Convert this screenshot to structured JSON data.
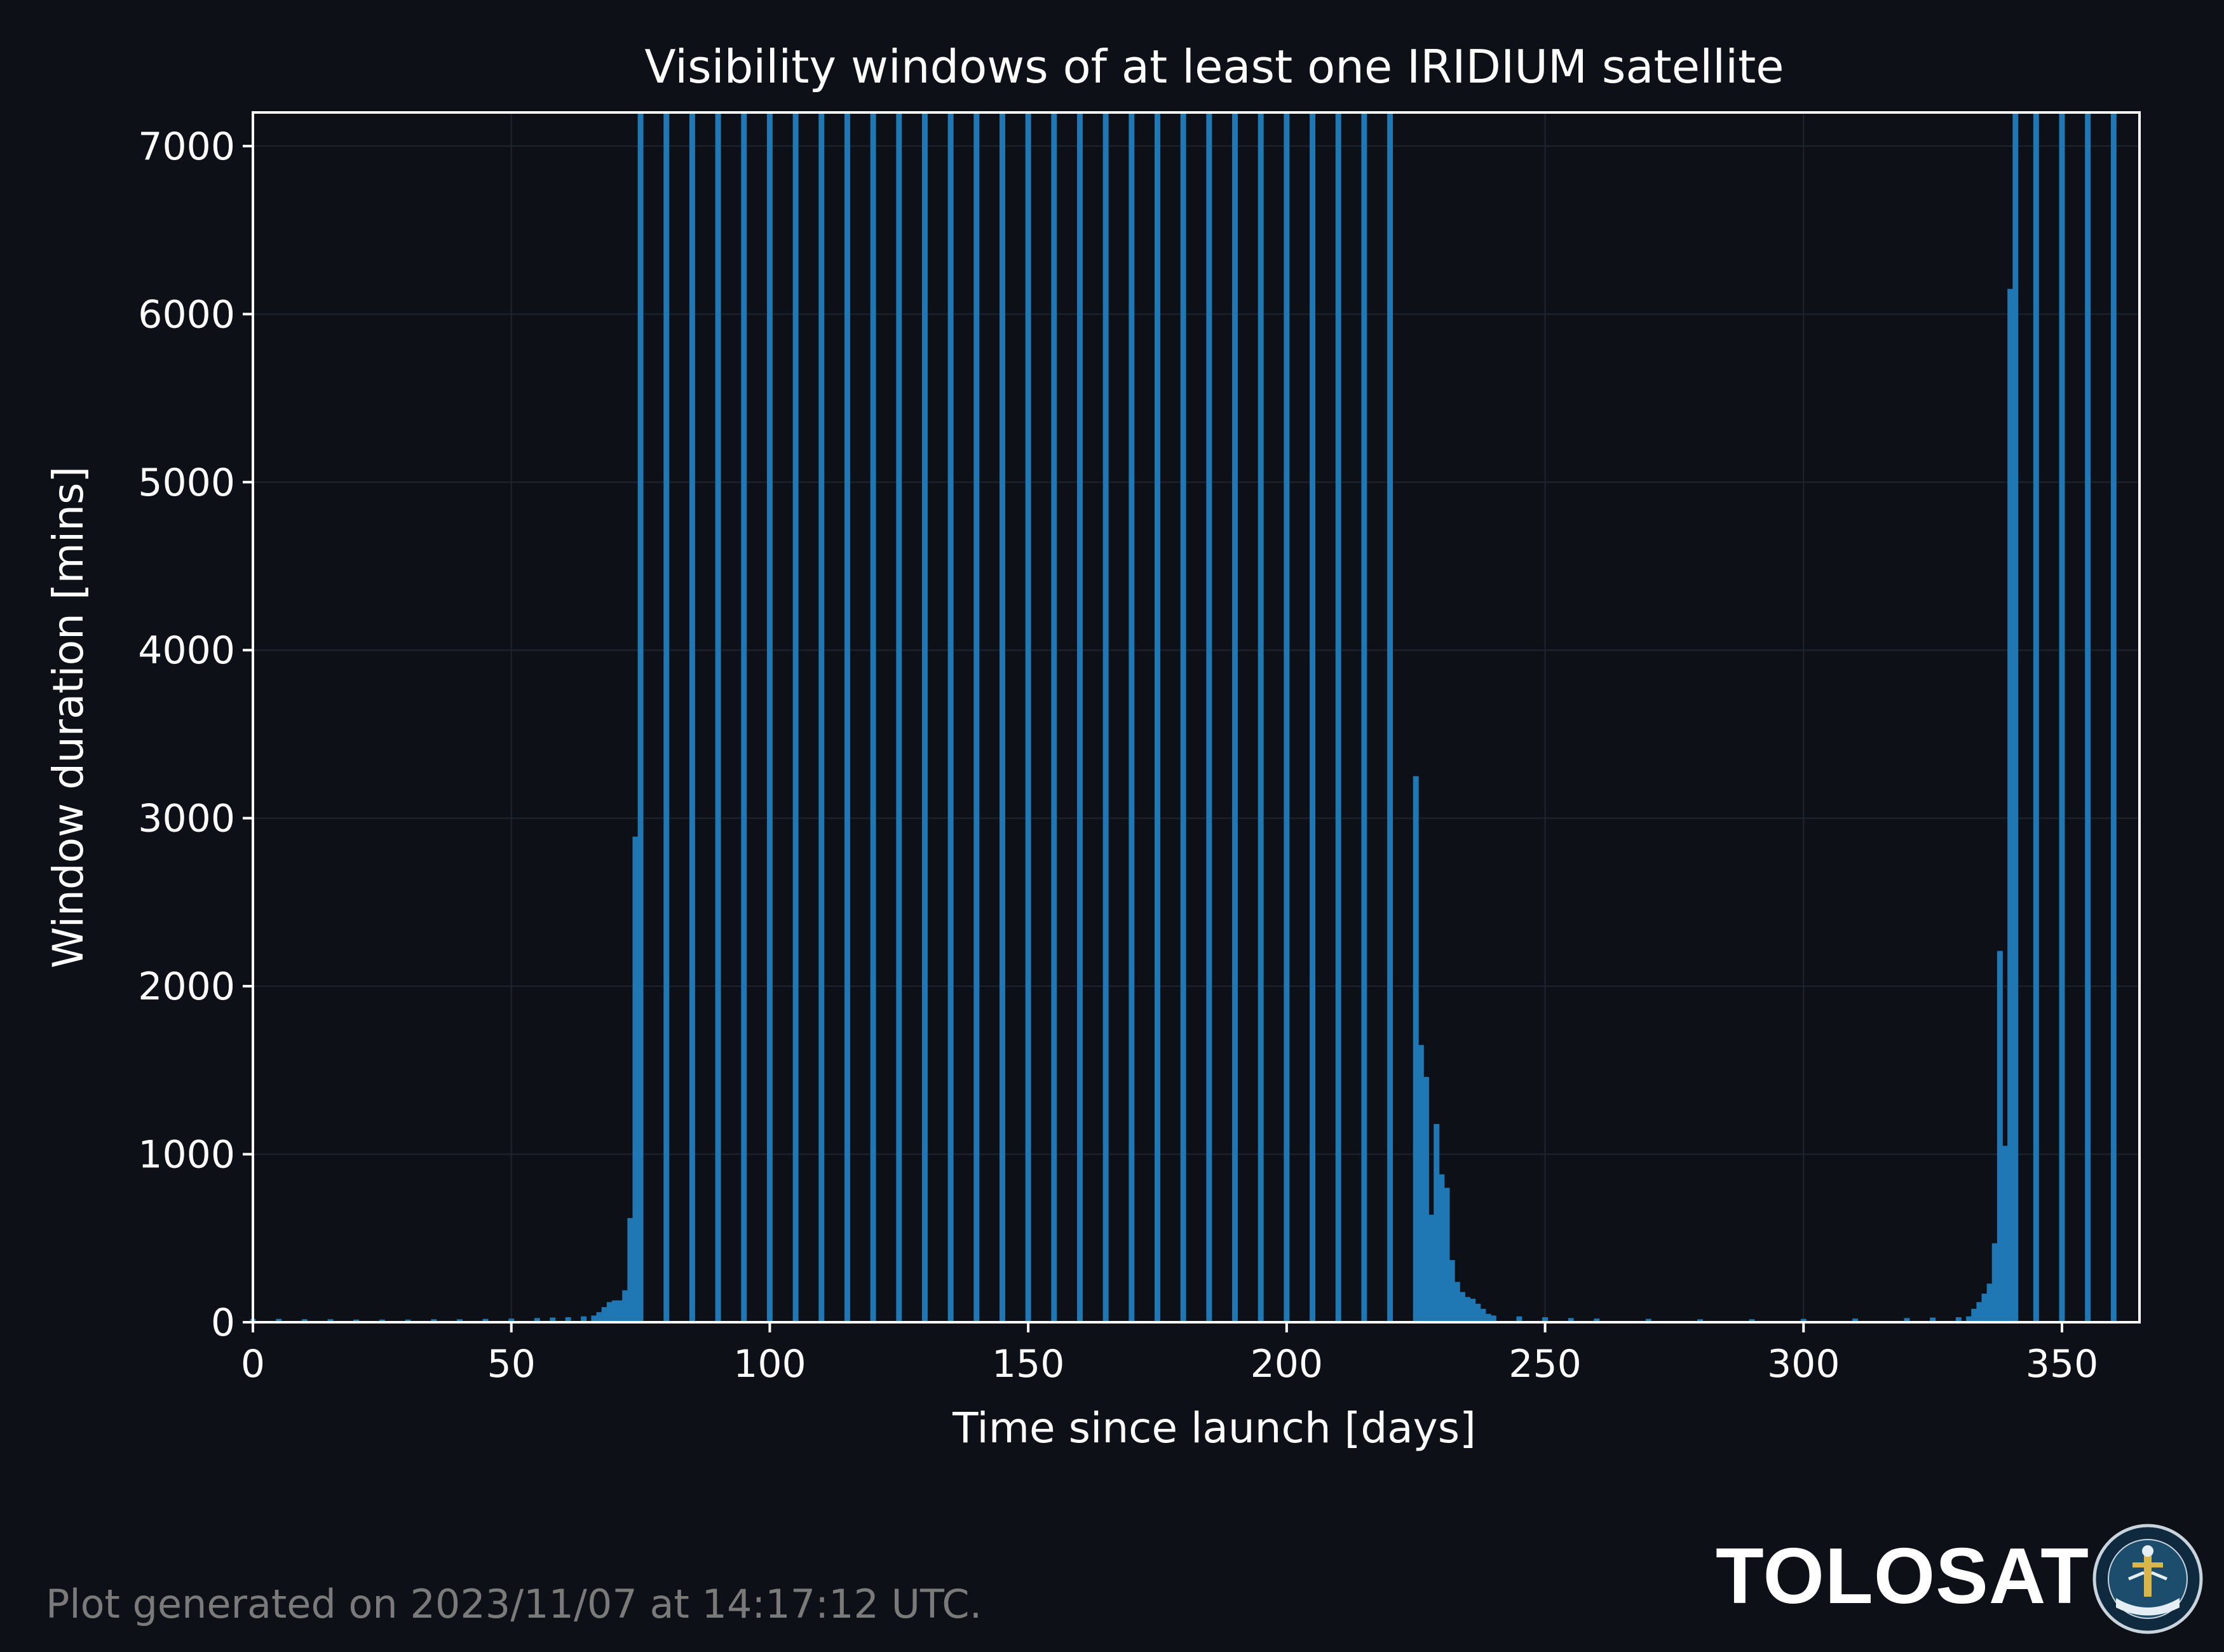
{
  "colors": {
    "background": "#0d1017",
    "bar": "#1f77b4",
    "axis": "#ffffff",
    "grid": "#1e2430",
    "footer": "#7a7a7a"
  },
  "chart_data": {
    "type": "bar",
    "title": "Visibility windows of at least one IRIDIUM satellite",
    "xlabel": "Time since launch [days]",
    "ylabel": "Window duration [mins]",
    "xlim": [
      0,
      365
    ],
    "ylim": [
      0,
      7200
    ],
    "xticks": [
      0,
      50,
      100,
      150,
      200,
      250,
      300,
      350
    ],
    "yticks": [
      0,
      1000,
      2000,
      3000,
      4000,
      5000,
      6000,
      7000
    ],
    "grid": true,
    "series": [
      {
        "x": [
          0,
          5,
          10,
          15,
          20,
          25,
          30,
          35,
          40,
          45,
          50,
          55,
          58,
          61,
          64,
          66,
          67,
          68,
          69,
          70,
          71,
          72,
          73,
          74,
          75,
          80,
          85,
          90,
          95,
          100,
          105,
          110,
          115,
          120,
          125,
          130,
          135,
          140,
          145,
          150,
          155,
          160,
          165,
          170,
          175,
          180,
          185,
          190,
          195,
          200,
          205,
          210,
          215,
          220,
          225,
          226,
          227,
          228,
          229,
          230,
          231,
          232,
          233,
          234,
          235,
          236,
          237,
          238,
          239,
          240,
          245,
          250,
          255,
          260,
          270,
          280,
          290,
          300,
          310,
          320,
          325,
          330,
          332,
          333,
          334,
          335,
          336,
          337,
          338,
          339,
          340,
          341,
          345,
          350,
          355,
          360
        ],
        "values": [
          20,
          20,
          18,
          18,
          16,
          16,
          16,
          18,
          18,
          20,
          22,
          25,
          28,
          30,
          35,
          40,
          60,
          90,
          120,
          130,
          130,
          190,
          620,
          2890,
          7200,
          7200,
          7200,
          7200,
          7200,
          7200,
          7200,
          7200,
          7200,
          7200,
          7200,
          7200,
          7200,
          7200,
          7200,
          7200,
          7200,
          7200,
          7200,
          7200,
          7200,
          7200,
          7200,
          7200,
          7200,
          7200,
          7200,
          7200,
          7200,
          7200,
          3250,
          1650,
          1460,
          640,
          1180,
          880,
          800,
          370,
          240,
          180,
          150,
          140,
          110,
          80,
          50,
          40,
          35,
          30,
          25,
          22,
          20,
          18,
          18,
          20,
          22,
          25,
          28,
          30,
          35,
          80,
          120,
          170,
          230,
          470,
          2210,
          1050,
          6150,
          7200,
          7200,
          7200,
          7200,
          7200
        ]
      }
    ]
  },
  "footer": {
    "generated_text": "Plot generated on 2023/11/07 at 14:17:12 UTC."
  },
  "brand": {
    "name": "TOLOSAT",
    "seal_text": "ASTRE-CC SUPAERO TOLOSAT"
  }
}
